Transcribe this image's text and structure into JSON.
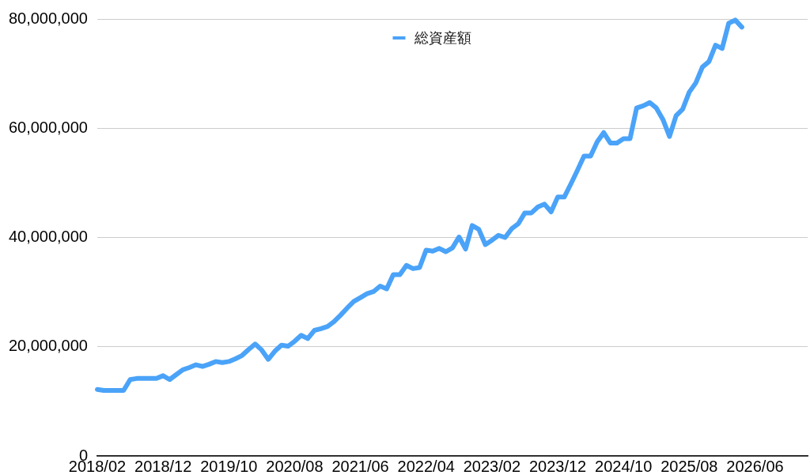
{
  "chart_data": {
    "type": "line",
    "categories": [
      "2018/02",
      null,
      null,
      null,
      null,
      null,
      null,
      null,
      null,
      null,
      "2018/12",
      null,
      null,
      null,
      null,
      null,
      null,
      null,
      null,
      null,
      "2019/10",
      null,
      null,
      null,
      null,
      null,
      null,
      null,
      null,
      null,
      "2020/08",
      null,
      null,
      null,
      null,
      null,
      null,
      null,
      null,
      null,
      "2021/06",
      null,
      null,
      null,
      null,
      null,
      null,
      null,
      null,
      null,
      "2022/04",
      null,
      null,
      null,
      null,
      null,
      null,
      null,
      null,
      null,
      "2023/02",
      null,
      null,
      null,
      null,
      null,
      null,
      null,
      null,
      null,
      "2023/12",
      null,
      null,
      null,
      null,
      null,
      null,
      null,
      null,
      null,
      "2024/10",
      null,
      null,
      null,
      null,
      null,
      null,
      null,
      null,
      null,
      "2025/08",
      null,
      null,
      null,
      null,
      null,
      null,
      null,
      null,
      null,
      "2026/06",
      null,
      null,
      null,
      null,
      null,
      null,
      null,
      null
    ],
    "series": [
      {
        "name": "総資産額",
        "color": "#4aa3f8",
        "values": [
          12200000,
          12000000,
          12000000,
          12000000,
          12000000,
          14000000,
          14200000,
          14200000,
          14200000,
          14200000,
          14700000,
          14000000,
          14900000,
          15800000,
          16200000,
          16700000,
          16400000,
          16800000,
          17300000,
          17100000,
          17300000,
          17800000,
          18400000,
          19500000,
          20500000,
          19400000,
          17700000,
          19200000,
          20300000,
          20100000,
          21000000,
          22100000,
          21500000,
          23000000,
          23300000,
          23700000,
          24600000,
          25800000,
          27100000,
          28300000,
          29000000,
          29700000,
          30100000,
          31100000,
          30600000,
          33200000,
          33200000,
          34900000,
          34300000,
          34500000,
          37700000,
          37500000,
          38000000,
          37400000,
          38100000,
          40100000,
          37900000,
          42200000,
          41500000,
          38700000,
          39500000,
          40400000,
          40000000,
          41600000,
          42500000,
          44500000,
          44500000,
          45600000,
          46100000,
          44700000,
          47400000,
          47400000,
          49800000,
          52300000,
          54900000,
          54900000,
          57500000,
          59200000,
          57300000,
          57300000,
          58100000,
          58100000,
          63700000,
          64100000,
          64700000,
          63700000,
          61600000,
          58500000,
          62300000,
          63500000,
          66600000,
          68300000,
          71200000,
          72200000,
          75200000,
          74600000,
          79200000,
          79800000,
          78500000,
          null,
          null,
          null,
          null,
          null,
          null,
          null,
          null,
          null,
          null
        ]
      }
    ],
    "ylim": [
      0,
      80000000
    ],
    "yticks": [
      0,
      {
        "value": 20000000,
        "label": "20,000,000"
      },
      {
        "value": 40000000,
        "label": "40,000,000"
      },
      {
        "value": 60000000,
        "label": "60,000,000"
      },
      {
        "value": 80000000,
        "label": "80,000,000"
      }
    ],
    "grid": "y",
    "legend": "top",
    "marker": "none",
    "line_style": "solid"
  }
}
